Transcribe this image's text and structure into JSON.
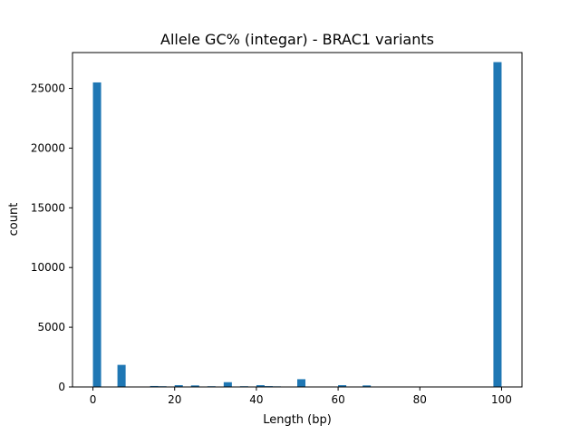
{
  "chart_data": {
    "type": "bar",
    "title": "Allele GC% (integar) - BRAC1 variants",
    "xlabel": "Length (bp)",
    "ylabel": "count",
    "xlim": [
      -5,
      105
    ],
    "ylim": [
      0,
      28000
    ],
    "xticks": [
      0,
      20,
      40,
      60,
      80,
      100
    ],
    "yticks": [
      0,
      5000,
      10000,
      15000,
      20000,
      25000
    ],
    "bin_width": 2,
    "grid": false,
    "colors": {
      "bar": "#1f77b4",
      "axis": "#000000",
      "background": "#ffffff"
    },
    "bins": [
      {
        "x": 0,
        "count": 25500
      },
      {
        "x": 6,
        "count": 1850
      },
      {
        "x": 14,
        "count": 80
      },
      {
        "x": 16,
        "count": 60
      },
      {
        "x": 20,
        "count": 150
      },
      {
        "x": 24,
        "count": 130
      },
      {
        "x": 28,
        "count": 60
      },
      {
        "x": 32,
        "count": 400
      },
      {
        "x": 36,
        "count": 60
      },
      {
        "x": 40,
        "count": 150
      },
      {
        "x": 42,
        "count": 70
      },
      {
        "x": 44,
        "count": 50
      },
      {
        "x": 50,
        "count": 650
      },
      {
        "x": 60,
        "count": 150
      },
      {
        "x": 66,
        "count": 130
      },
      {
        "x": 98,
        "count": 27200
      }
    ]
  }
}
